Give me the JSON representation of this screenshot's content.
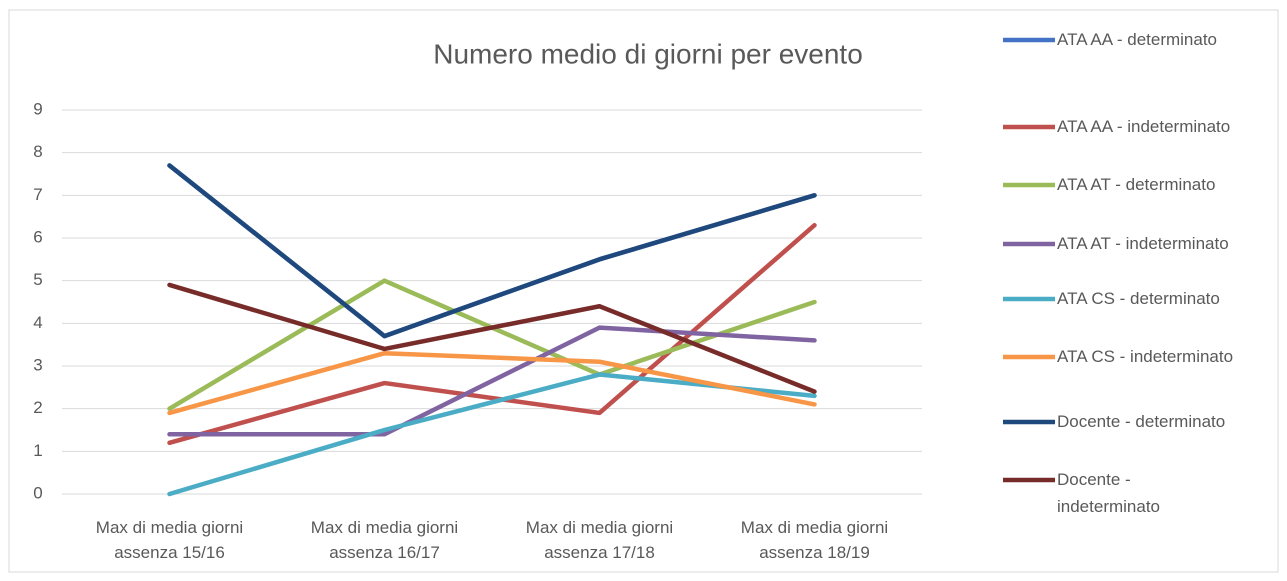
{
  "chart_data": {
    "type": "line",
    "title": "Numero medio di giorni per evento",
    "categories": [
      "Max di media giorni assenza 15/16",
      "Max di media giorni assenza 16/17",
      "Max di media giorni assenza 17/18",
      "Max di media giorni assenza 18/19"
    ],
    "series": [
      {
        "name": "ATA AA - determinato",
        "color": "#4472c4",
        "values": [
          7.7,
          3.7,
          5.5,
          7.0
        ]
      },
      {
        "name": "ATA AA - indeterminato",
        "color": "#c0504d",
        "values": [
          1.2,
          2.6,
          1.9,
          6.3
        ]
      },
      {
        "name": "ATA AT - determinato",
        "color": "#9bbb59",
        "values": [
          2.0,
          5.0,
          2.8,
          4.5
        ]
      },
      {
        "name": "ATA AT - indeterminato",
        "color": "#8064a2",
        "values": [
          1.4,
          1.4,
          3.9,
          3.6
        ]
      },
      {
        "name": "ATA CS - determinato",
        "color": "#4bacc6",
        "values": [
          0,
          1.5,
          2.8,
          2.3
        ]
      },
      {
        "name": "ATA CS - indeterminato",
        "color": "#f79646",
        "values": [
          1.9,
          3.3,
          3.1,
          2.1
        ]
      },
      {
        "name": "Docente - determinato",
        "color": "#1f497d",
        "values": [
          7.7,
          3.7,
          5.5,
          7.0
        ]
      },
      {
        "name": "Docente - indeterminato",
        "color": "#772c2a",
        "values": [
          4.9,
          3.4,
          4.4,
          2.4
        ]
      }
    ],
    "ylim": [
      0,
      9
    ],
    "yticks": [
      0,
      1,
      2,
      3,
      4,
      5,
      6,
      7,
      8,
      9
    ],
    "grid": true,
    "legend": "right"
  }
}
